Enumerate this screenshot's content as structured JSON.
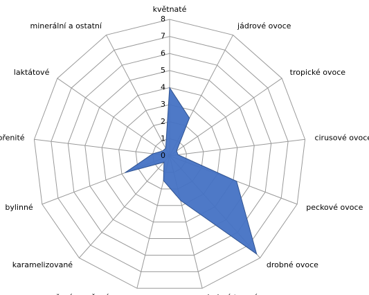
{
  "chart_data": {
    "type": "radar",
    "categories": [
      "květnaté",
      "jádrové ovoce",
      "tropické ovoce",
      "cirusové ovoce",
      "peckové ovoce",
      "drobné ovoce",
      "drobné tmavé ovoce",
      "vařené a sušené ovoce",
      "karamelizované",
      "bylinné",
      "kořenité",
      "laktátové",
      "minerální a ostatní"
    ],
    "values": [
      4,
      2.5,
      0.5,
      0.5,
      4.2,
      7.7,
      2.7,
      1.5,
      0.5,
      2.8,
      1,
      0.5,
      0.5
    ],
    "color": "#4472c4",
    "rlim": [
      0,
      8
    ],
    "rticks": [
      0,
      1,
      2,
      3,
      4,
      5,
      6,
      7,
      8
    ],
    "grid": true
  }
}
